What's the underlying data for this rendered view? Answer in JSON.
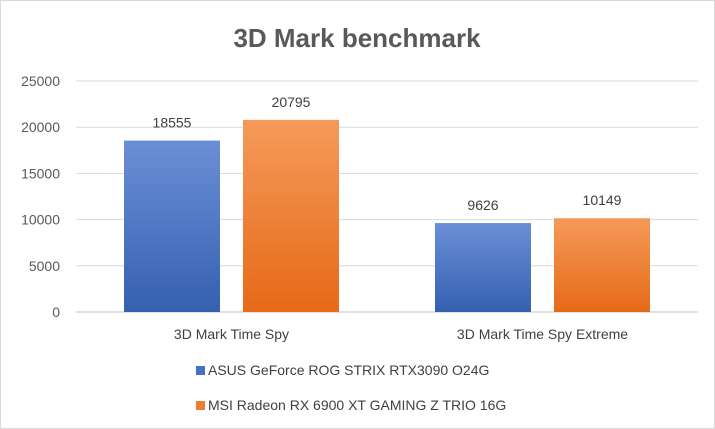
{
  "chart_data": {
    "type": "bar",
    "title": "3D Mark benchmark",
    "categories": [
      "3D Mark Time Spy",
      "3D Mark Time Spy Extreme"
    ],
    "series": [
      {
        "name": "ASUS GeForce ROG STRIX RTX3090 O24G",
        "values": [
          18555,
          9626
        ],
        "color": "#4472c4"
      },
      {
        "name": "MSI Radeon RX 6900 XT GAMING Z TRIO 16G",
        "values": [
          20795,
          10149
        ],
        "color": "#ed7d31"
      }
    ],
    "ylim": [
      0,
      25000
    ],
    "yticks": [
      0,
      5000,
      10000,
      15000,
      20000,
      25000
    ],
    "grid": true,
    "legend_position": "bottom",
    "data_labels": true
  }
}
